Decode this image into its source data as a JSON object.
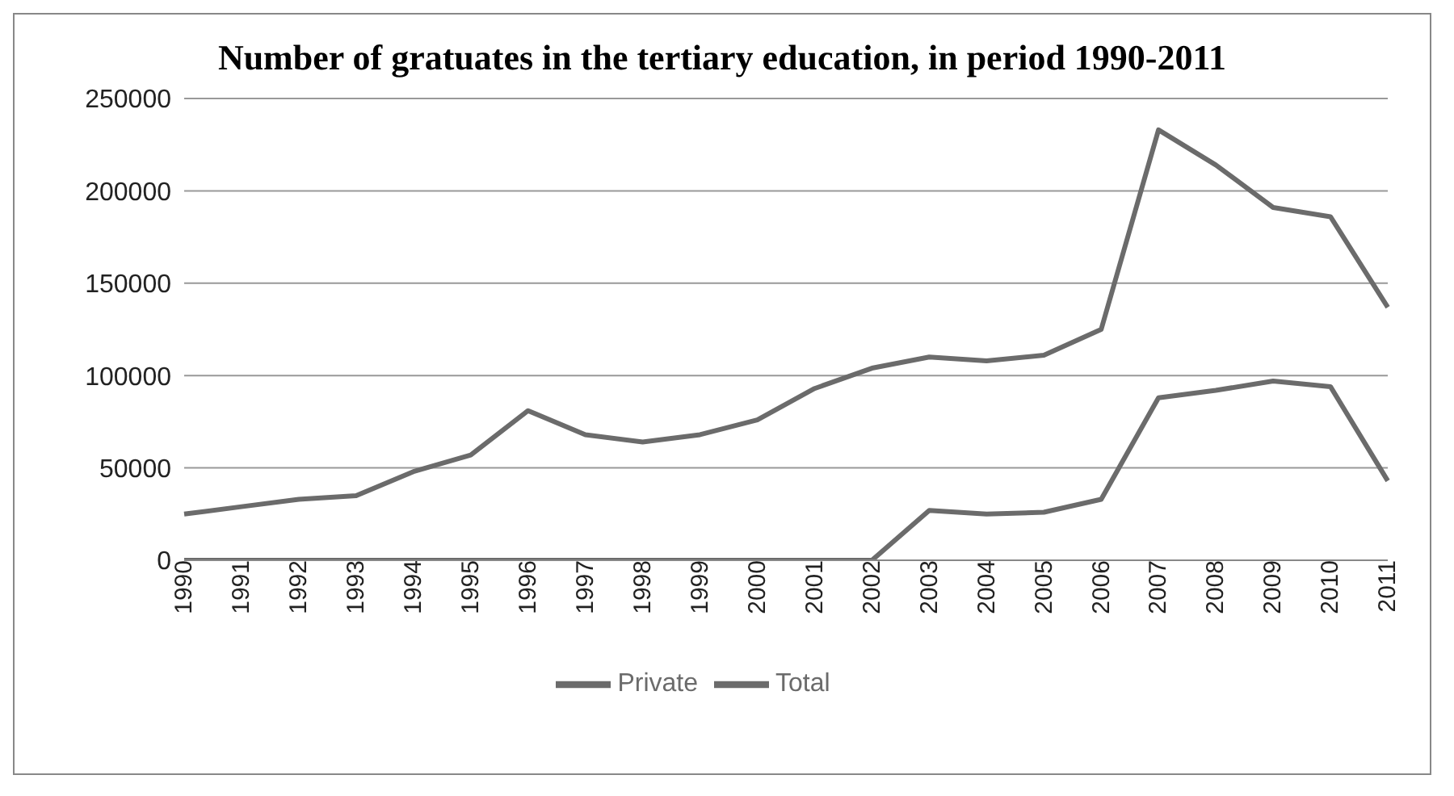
{
  "chart_data": {
    "type": "line",
    "title": "Number of gratuates in the tertiary education, in period 1990-2011",
    "categories": [
      "1990",
      "1991",
      "1992",
      "1993",
      "1994",
      "1995",
      "1996",
      "1997",
      "1998",
      "1999",
      "2000",
      "2001",
      "2002",
      "2003",
      "2004",
      "2005",
      "2006",
      "2007",
      "2008",
      "2009",
      "2010",
      "2011"
    ],
    "series": [
      {
        "name": "Total",
        "color": "#6b6b6b",
        "values": [
          25000,
          29000,
          33000,
          35000,
          48000,
          57000,
          81000,
          68000,
          64000,
          68000,
          76000,
          93000,
          104000,
          110000,
          108000,
          111000,
          125000,
          233000,
          214000,
          191000,
          186000,
          137000
        ]
      },
      {
        "name": "Private",
        "color": "#6b6b6b",
        "values": [
          0,
          0,
          0,
          0,
          0,
          0,
          0,
          0,
          0,
          0,
          0,
          0,
          0,
          27000,
          25000,
          26000,
          33000,
          88000,
          92000,
          97000,
          94000,
          43000
        ]
      }
    ],
    "ylim": [
      0,
      250000
    ],
    "yticks": [
      0,
      50000,
      100000,
      150000,
      200000,
      250000
    ],
    "grid": "y",
    "legend": "bottom",
    "marker": "none",
    "line_style": "solid"
  }
}
